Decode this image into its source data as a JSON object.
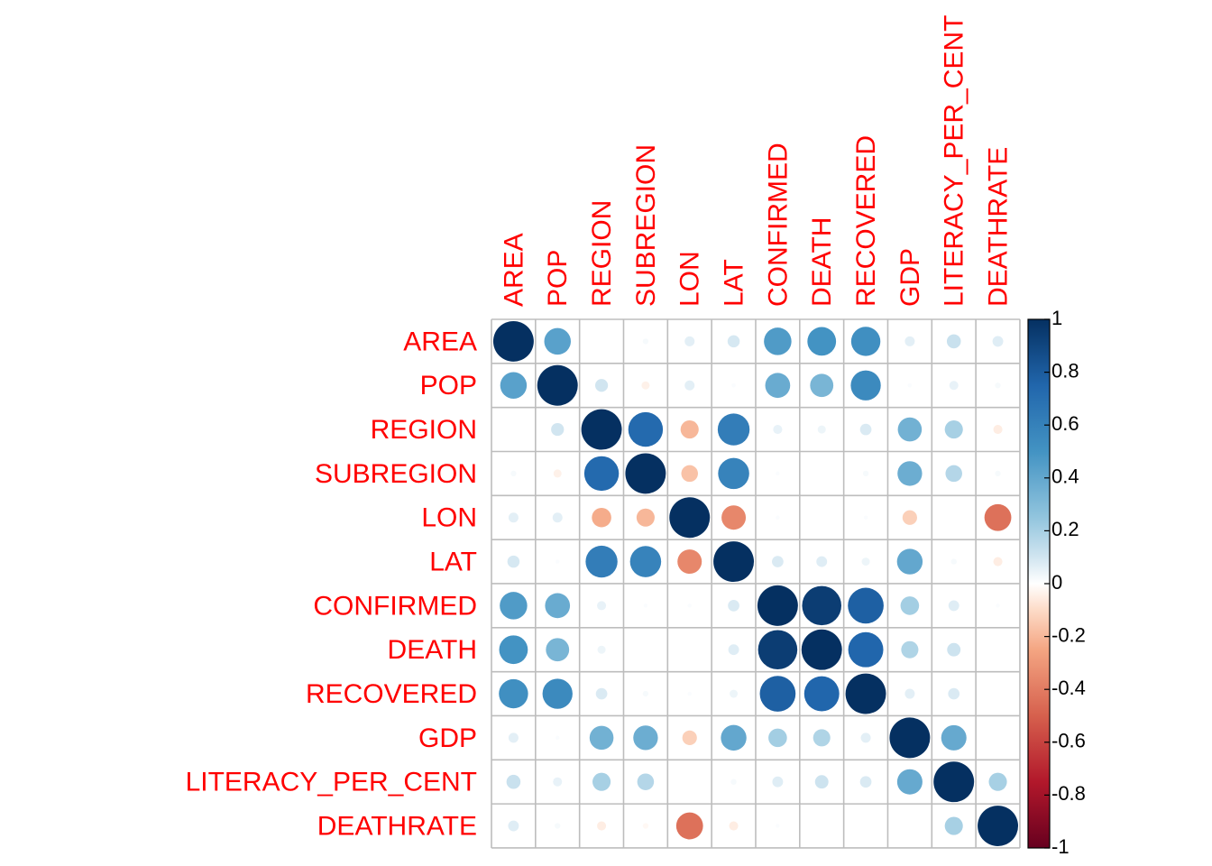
{
  "chart_data": {
    "type": "heatmap",
    "variables": [
      "AREA",
      "POP",
      "REGION",
      "SUBREGION",
      "LON",
      "LAT",
      "CONFIRMED",
      "DEATH",
      "RECOVERED",
      "GDP",
      "LITERACY_PER_CENT",
      "DEATHRATE"
    ],
    "matrix": [
      [
        1.0,
        0.43,
        0.0,
        0.02,
        0.06,
        0.09,
        0.46,
        0.5,
        0.52,
        0.06,
        0.12,
        0.07
      ],
      [
        0.43,
        1.0,
        0.1,
        -0.04,
        0.06,
        0.01,
        0.38,
        0.33,
        0.55,
        0.01,
        0.05,
        0.02
      ],
      [
        0.0,
        0.1,
        1.0,
        0.73,
        -0.2,
        0.62,
        0.05,
        0.04,
        0.08,
        0.35,
        0.2,
        -0.05
      ],
      [
        0.02,
        -0.04,
        0.73,
        1.0,
        -0.17,
        0.59,
        0.01,
        0.0,
        0.02,
        0.37,
        0.17,
        0.02
      ],
      [
        0.06,
        0.06,
        -0.23,
        -0.2,
        1.0,
        -0.36,
        0.01,
        0.0,
        0.01,
        -0.13,
        0.0,
        -0.44
      ],
      [
        0.09,
        0.01,
        0.62,
        0.59,
        -0.36,
        1.0,
        0.08,
        0.07,
        0.04,
        0.4,
        0.02,
        -0.05
      ],
      [
        0.46,
        0.38,
        0.05,
        0.01,
        0.01,
        0.08,
        1.0,
        0.94,
        0.78,
        0.21,
        0.07,
        0.01
      ],
      [
        0.5,
        0.33,
        0.04,
        0.0,
        0.0,
        0.07,
        0.94,
        1.0,
        0.75,
        0.18,
        0.11,
        0.0
      ],
      [
        0.52,
        0.55,
        0.08,
        0.02,
        0.01,
        0.04,
        0.78,
        0.75,
        1.0,
        0.06,
        0.08,
        0.0
      ],
      [
        0.06,
        0.01,
        0.35,
        0.37,
        -0.13,
        0.4,
        0.21,
        0.18,
        0.06,
        1.0,
        0.39,
        0.0
      ],
      [
        0.12,
        0.05,
        0.2,
        0.17,
        0.0,
        0.02,
        0.07,
        0.11,
        0.08,
        0.39,
        1.0,
        0.2
      ],
      [
        0.07,
        0.02,
        -0.05,
        -0.02,
        -0.44,
        -0.05,
        0.01,
        0.0,
        0.0,
        0.0,
        0.2,
        1.0
      ]
    ],
    "color_scale": {
      "range": [
        -1,
        1
      ],
      "ticks": [
        "1",
        "0.8",
        "0.6",
        "0.4",
        "0.2",
        "0",
        "-0.2",
        "-0.4",
        "-0.6",
        "-0.8",
        "-1"
      ],
      "stops": [
        {
          "value": -1.0,
          "color": "#67001f"
        },
        {
          "value": -0.75,
          "color": "#b2182b"
        },
        {
          "value": -0.5,
          "color": "#d6604d"
        },
        {
          "value": -0.25,
          "color": "#f4a582"
        },
        {
          "value": -0.1,
          "color": "#fddbc7"
        },
        {
          "value": 0.0,
          "color": "#ffffff"
        },
        {
          "value": 0.1,
          "color": "#d1e5f0"
        },
        {
          "value": 0.25,
          "color": "#92c5de"
        },
        {
          "value": 0.5,
          "color": "#4393c3"
        },
        {
          "value": 0.75,
          "color": "#2166ac"
        },
        {
          "value": 1.0,
          "color": "#053061"
        }
      ]
    },
    "marker": "circle",
    "grid": true,
    "label_color": "#ff0000",
    "legend_placement": "right"
  }
}
